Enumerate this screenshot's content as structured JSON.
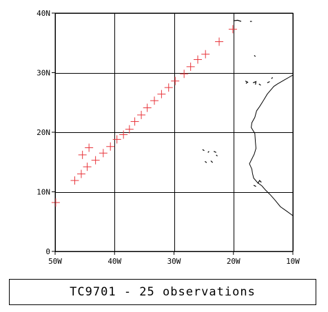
{
  "chart_data": {
    "type": "scatter",
    "marker": "plus",
    "marker_color": "#e8343a",
    "axes_color": "#000000",
    "coastline_color": "#000000",
    "grid": true,
    "xlim": [
      -50,
      -10
    ],
    "ylim": [
      0,
      40
    ],
    "x_ticks": [
      {
        "value": -50,
        "label": "50W"
      },
      {
        "value": -40,
        "label": "40W"
      },
      {
        "value": -30,
        "label": "30W"
      },
      {
        "value": -20,
        "label": "20W"
      },
      {
        "value": -10,
        "label": "10W"
      }
    ],
    "y_ticks": [
      {
        "value": 0,
        "label": "0"
      },
      {
        "value": 10,
        "label": "10N"
      },
      {
        "value": 20,
        "label": "20N"
      },
      {
        "value": 30,
        "label": "30N"
      },
      {
        "value": 40,
        "label": "40N"
      }
    ],
    "points": [
      {
        "lon": -49.9,
        "lat": 8.2
      },
      {
        "lon": -46.7,
        "lat": 11.9
      },
      {
        "lon": -45.6,
        "lat": 13.0
      },
      {
        "lon": -44.6,
        "lat": 14.2
      },
      {
        "lon": -43.2,
        "lat": 15.3
      },
      {
        "lon": -41.9,
        "lat": 16.5
      },
      {
        "lon": -40.7,
        "lat": 17.6
      },
      {
        "lon": -39.6,
        "lat": 18.8
      },
      {
        "lon": -38.5,
        "lat": 19.6
      },
      {
        "lon": -37.5,
        "lat": 20.5
      },
      {
        "lon": -36.6,
        "lat": 21.8
      },
      {
        "lon": -35.5,
        "lat": 22.9
      },
      {
        "lon": -34.5,
        "lat": 24.1
      },
      {
        "lon": -33.3,
        "lat": 25.3
      },
      {
        "lon": -32.1,
        "lat": 26.4
      },
      {
        "lon": -30.9,
        "lat": 27.5
      },
      {
        "lon": -29.8,
        "lat": 28.6
      },
      {
        "lon": -28.3,
        "lat": 29.8
      },
      {
        "lon": -27.2,
        "lat": 31.0
      },
      {
        "lon": -26.0,
        "lat": 32.2
      },
      {
        "lon": -24.7,
        "lat": 33.1
      },
      {
        "lon": -22.4,
        "lat": 35.2
      },
      {
        "lon": -20.1,
        "lat": 37.3
      },
      {
        "lon": -45.4,
        "lat": 16.2
      },
      {
        "lon": -44.3,
        "lat": 17.4
      }
    ]
  },
  "coastline": {
    "africa": [
      [
        -10.0,
        29.6
      ],
      [
        -11.4,
        28.8
      ],
      [
        -12.6,
        28.1
      ],
      [
        -13.2,
        27.7
      ],
      [
        -14.3,
        26.4
      ],
      [
        -14.9,
        25.4
      ],
      [
        -15.6,
        24.3
      ],
      [
        -16.1,
        23.6
      ],
      [
        -16.4,
        22.5
      ],
      [
        -16.9,
        21.6
      ],
      [
        -17.0,
        20.8
      ],
      [
        -16.4,
        19.8
      ],
      [
        -16.3,
        18.3
      ],
      [
        -16.2,
        17.3
      ],
      [
        -16.5,
        16.3
      ],
      [
        -17.3,
        14.7
      ],
      [
        -16.9,
        13.8
      ],
      [
        -16.8,
        13.1
      ],
      [
        -16.6,
        12.3
      ],
      [
        -15.9,
        11.5
      ],
      [
        -15.2,
        11.0
      ],
      [
        -14.6,
        10.3
      ],
      [
        -13.7,
        9.4
      ],
      [
        -13.0,
        8.6
      ],
      [
        -12.1,
        7.5
      ],
      [
        -11.1,
        6.8
      ],
      [
        -10.0,
        6.0
      ]
    ],
    "islands": [
      [
        [
          -20.0,
          38.7
        ],
        [
          -19.3,
          38.8
        ],
        [
          -18.7,
          38.6
        ]
      ],
      [
        [
          -17.2,
          38.6
        ],
        [
          -16.9,
          38.6
        ]
      ],
      [
        [
          -16.5,
          32.9
        ],
        [
          -16.3,
          32.7
        ]
      ],
      [
        [
          -18.0,
          28.6
        ],
        [
          -17.6,
          28.4
        ],
        [
          -17.9,
          28.2
        ]
      ],
      [
        [
          -16.7,
          28.3
        ],
        [
          -16.2,
          28.5
        ],
        [
          -16.3,
          28.0
        ]
      ],
      [
        [
          -15.7,
          28.1
        ],
        [
          -15.4,
          27.9
        ]
      ],
      [
        [
          -14.3,
          28.3
        ],
        [
          -13.9,
          28.5
        ]
      ],
      [
        [
          -13.6,
          29.0
        ],
        [
          -13.4,
          29.2
        ]
      ],
      [
        [
          -25.2,
          17.1
        ],
        [
          -24.9,
          16.9
        ]
      ],
      [
        [
          -24.3,
          16.6
        ],
        [
          -24.1,
          16.8
        ]
      ],
      [
        [
          -23.3,
          16.8
        ],
        [
          -22.9,
          16.6
        ]
      ],
      [
        [
          -22.9,
          16.2
        ],
        [
          -22.7,
          16.0
        ]
      ],
      [
        [
          -24.8,
          15.1
        ],
        [
          -24.5,
          14.9
        ]
      ],
      [
        [
          -23.8,
          15.2
        ],
        [
          -23.5,
          14.9
        ]
      ],
      [
        [
          -15.9,
          11.4
        ],
        [
          -15.6,
          11.9
        ],
        [
          -15.3,
          11.6
        ]
      ],
      [
        [
          -16.6,
          11.1
        ],
        [
          -16.2,
          10.9
        ]
      ]
    ]
  },
  "caption": {
    "text": "TC9701 - 25 observations"
  }
}
